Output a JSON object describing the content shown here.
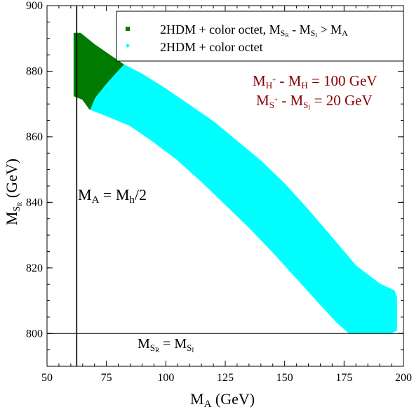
{
  "chart_data": {
    "type": "scatter",
    "x_axis": {
      "label_main": "M",
      "label_sub": "A",
      "label_unit": " (GeV)",
      "range": [
        50,
        200
      ],
      "ticks": [
        50,
        75,
        100,
        125,
        150,
        175,
        200
      ],
      "tick_labels": [
        "50",
        "75",
        "100",
        "125",
        "150",
        "175",
        "200"
      ]
    },
    "y_axis": {
      "label_main": "M",
      "label_sub": "S",
      "label_subsub": "R",
      "label_unit": " (GeV)",
      "range": [
        790,
        900
      ],
      "ticks": [
        800,
        820,
        840,
        860,
        880,
        900
      ],
      "tick_labels": [
        "800",
        "820",
        "840",
        "860",
        "880",
        "900"
      ]
    },
    "grid": false,
    "legend": {
      "placement": "top-right",
      "entries": [
        {
          "name_main": "2HDM + color octet, M",
          "name_sub1": "S",
          "name_subsub1": "R",
          "name_mid": " - M",
          "name_sub2": "S",
          "name_subsub2": "I",
          "name_end": " > M",
          "name_sub3": "A",
          "color": "#007a00",
          "marker": "square"
        },
        {
          "name_main": "2HDM + color octet",
          "color": "#00ffff",
          "marker": "diamond"
        }
      ]
    },
    "series": [
      {
        "name": "2HDM + color octet",
        "color": "#00ffff",
        "region_polygon": [
          [
            68,
            868.5
          ],
          [
            70,
            872
          ],
          [
            75,
            876.5
          ],
          [
            80,
            880.5
          ],
          [
            82,
            882
          ],
          [
            90,
            879
          ],
          [
            100,
            874.5
          ],
          [
            110,
            869.5
          ],
          [
            120,
            864.5
          ],
          [
            130,
            858.5
          ],
          [
            140,
            852.5
          ],
          [
            150,
            845.5
          ],
          [
            160,
            837.5
          ],
          [
            170,
            829
          ],
          [
            180,
            820.5
          ],
          [
            190,
            815
          ],
          [
            196,
            813
          ],
          [
            197,
            811
          ],
          [
            197,
            801
          ],
          [
            195,
            800.3
          ],
          [
            177,
            800.3
          ],
          [
            172,
            803.5
          ],
          [
            165,
            809
          ],
          [
            155,
            817
          ],
          [
            145,
            825
          ],
          [
            135,
            832.5
          ],
          [
            125,
            839.5
          ],
          [
            115,
            846.5
          ],
          [
            105,
            853
          ],
          [
            95,
            858.5
          ],
          [
            85,
            863.5
          ],
          [
            75,
            866.5
          ]
        ]
      },
      {
        "name": "2HDM + color octet, M_SR - M_SI > M_A",
        "color": "#007a00",
        "region_polygon": [
          [
            61.5,
            891.5
          ],
          [
            64,
            891.5
          ],
          [
            70,
            888
          ],
          [
            75,
            885.5
          ],
          [
            82,
            882
          ],
          [
            80,
            880.5
          ],
          [
            75,
            876.5
          ],
          [
            70,
            872
          ],
          [
            68,
            868.5
          ],
          [
            65,
            871.5
          ],
          [
            61.5,
            872.5
          ]
        ]
      }
    ],
    "reference_lines": [
      {
        "orientation": "vertical",
        "x": 62.5,
        "label_main": "M",
        "label_sub": "A",
        "label_mid": " = M",
        "label_sub2": "h",
        "label_end": "/2"
      },
      {
        "orientation": "horizontal",
        "y": 800,
        "label_main": "M",
        "label_sub": "S",
        "label_subsub": "R",
        "label_mid": " = M",
        "label_sub2": "S",
        "label_subsub2": "I"
      }
    ],
    "annotations": [
      {
        "color": "#8b0000",
        "main": "M",
        "sub": "H",
        "sup": "+",
        "mid": " - M",
        "sub2": "H",
        "end": " = 100 GeV"
      },
      {
        "color": "#8b0000",
        "main": "M",
        "sub": "S",
        "sup": "+",
        "mid": " - M",
        "sub2": "S",
        "subsub2": "I",
        "end": " = 20 GeV"
      }
    ]
  }
}
